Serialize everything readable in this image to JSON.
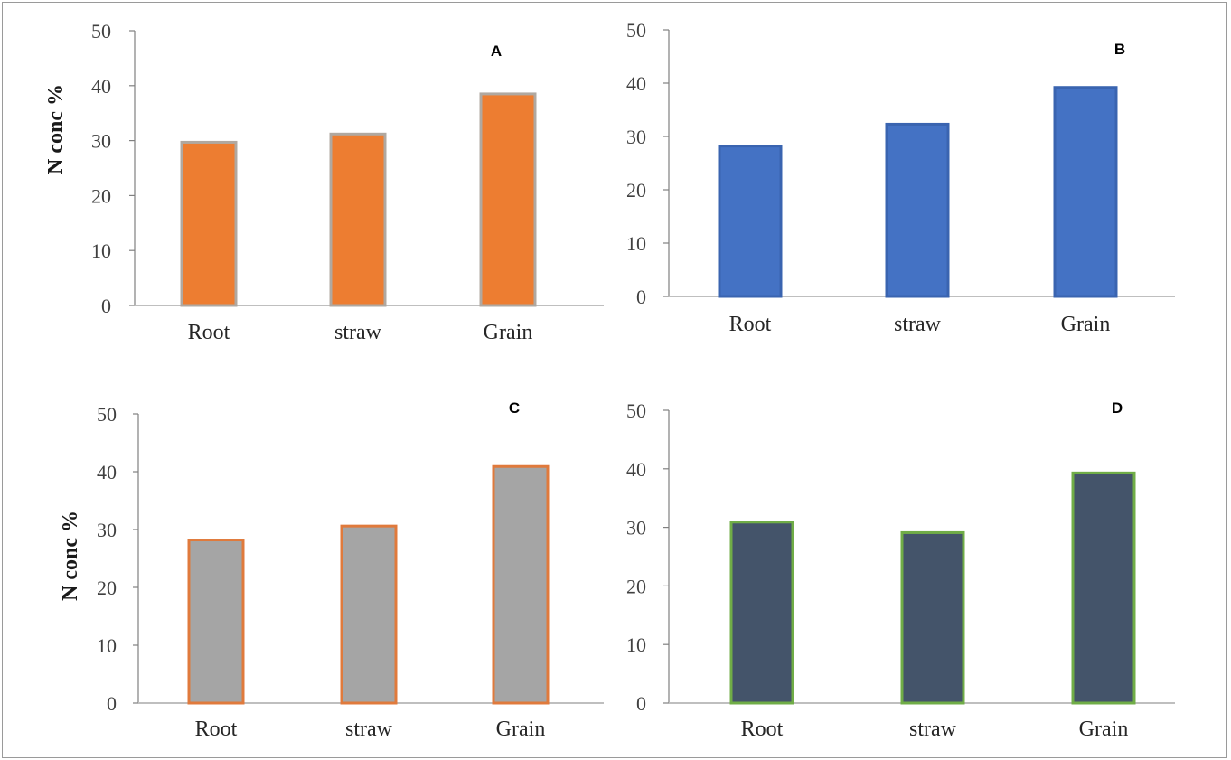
{
  "chart_data": [
    {
      "type": "bar",
      "panel_label": "A",
      "categories": [
        "Root",
        "straw",
        "Grain"
      ],
      "values": [
        29.7,
        31.2,
        38.5
      ],
      "title": "",
      "xlabel": "",
      "ylabel": "N  conc %",
      "ylim": [
        0,
        50
      ],
      "yticks": [
        "0",
        "10",
        "20",
        "30",
        "40",
        "50"
      ],
      "grid": false,
      "bar_fill": "#ED7D31",
      "bar_edge": "#B0A8A0"
    },
    {
      "type": "bar",
      "panel_label": "B",
      "categories": [
        "Root",
        "straw",
        "Grain"
      ],
      "values": [
        28.2,
        32.3,
        39.2
      ],
      "title": "",
      "xlabel": "",
      "ylabel": "",
      "ylim": [
        0,
        50
      ],
      "yticks": [
        "0",
        "10",
        "20",
        "30",
        "40",
        "50"
      ],
      "grid": false,
      "bar_fill": "#4472C4",
      "bar_edge": "#3A64B0"
    },
    {
      "type": "bar",
      "panel_label": "C",
      "categories": [
        "Root",
        "straw",
        "Grain"
      ],
      "values": [
        28.2,
        30.6,
        40.9
      ],
      "title": "",
      "xlabel": "",
      "ylabel": "N conc %",
      "ylim": [
        0,
        50
      ],
      "yticks": [
        "0",
        "10",
        "20",
        "30",
        "40",
        "50"
      ],
      "grid": false,
      "bar_fill": "#A5A5A5",
      "bar_edge": "#E07A3C"
    },
    {
      "type": "bar",
      "panel_label": "D",
      "categories": [
        "Root",
        "straw",
        "Grain"
      ],
      "values": [
        30.9,
        29.1,
        39.3
      ],
      "title": "",
      "xlabel": "",
      "ylabel": "",
      "ylim": [
        0,
        50
      ],
      "yticks": [
        "0",
        "10",
        "20",
        "30",
        "40",
        "50"
      ],
      "grid": false,
      "bar_fill": "#44546A",
      "bar_edge": "#70AD47"
    }
  ]
}
